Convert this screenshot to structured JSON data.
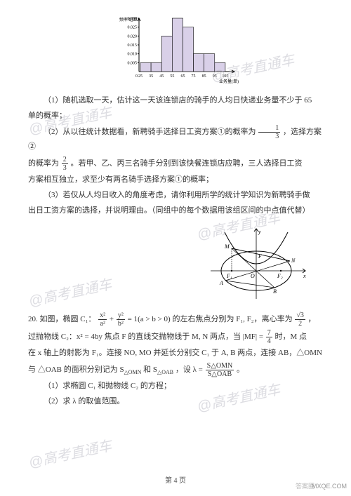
{
  "watermark": "@高考直通车",
  "histogram": {
    "type": "histogram",
    "ylabel": "频率/组距",
    "xlabel": "业务量(单)",
    "xticks": [
      "0",
      "25",
      "35",
      "45",
      "55",
      "65",
      "75",
      "85",
      "95",
      "105"
    ],
    "yticks": [
      "0.005",
      "0.010",
      "0.015",
      "0.020",
      "0.025",
      "0.030"
    ],
    "values": [
      0.005,
      0.005,
      0.02,
      0.03,
      0.025,
      0.01,
      0.01,
      0.005
    ],
    "bar_color": "#d9d0e8",
    "bar_border": "#000000",
    "axis_color": "#000000",
    "font_size": 6
  },
  "p1_a": "（1）随机选取一天，估计这一天该连锁店的骑手的人均日快递业务量不少于 65",
  "p1_b": "单的概率；",
  "p2_a": "（2）从以往统计数据看，新聘骑手选择日工资方案①的概率为",
  "p2_b": "，选择方案②",
  "p2_c": "的概率为",
  "p2_d": "。若甲、乙、丙三名骑手分别到该快餐连锁店应聘，三人选择日工资",
  "p2_e": "方案相互独立，求至少有两名骑手选择方案①的概率；",
  "p3_a": "（3）若仅从人均日收入的角度考虑，请你利用所学的统计学知识为新聘骑手做",
  "p3_b": "出日工资方案的选择，并说明理由。（同组中的每个数据用该组区间的中点值代替）",
  "frac1": {
    "num": "1",
    "den": "3"
  },
  "frac2": {
    "num": "2",
    "den": "3"
  },
  "ellipse": {
    "type": "diagram",
    "axis_color": "#000000",
    "ellipse_stroke": "#000000",
    "parabola_stroke": "#000000",
    "fill": "none",
    "labels": [
      "y",
      "x",
      "O",
      "F₁",
      "F₂",
      "M",
      "N",
      "A",
      "B"
    ]
  },
  "q20_a": "20. 如图，椭圆 C₁：",
  "q20_eq1_a": "x²",
  "q20_eq1_b": "a²",
  "q20_eq1_c": "y²",
  "q20_eq1_d": "b²",
  "q20_b": " = 1(a > b > 0) 的左右焦点分别为 F₁, F₂，离心率为",
  "q20_ecc_num": "√3",
  "q20_ecc_den": "2",
  "q20_c": "，",
  "q20_d": "过抛物线 C₂：x² = 4by 焦点 F 的直线交抛物线于 M, N 两点，当 |MF| =",
  "q20_mf_num": "7",
  "q20_mf_den": "4",
  "q20_e": " 时，M 点",
  "q20_f": "在 x 轴上的射影为 F₁。连接 NO, MO 并延长分别交 C₁ 于 A, B 两点，连接 AB，△OMN",
  "q20_g": "与 △OAB 的面积分别记为 S",
  "q20_g2": " 和 S",
  "q20_g3": "，设 λ =",
  "q20_lam_num": "S△OMN",
  "q20_lam_den": "S△OAB",
  "q20_h": "。",
  "q20_s1": "（1）求椭圆 C₁ 和抛物线 C₂ 的方程；",
  "q20_s2": "（2）求 λ 的取值范围。",
  "sub_omn": "△OMN",
  "sub_oab": "△OAB",
  "footer": "第 4 页",
  "corner_r": "MXQE.COM",
  "corner_l": "答案圈"
}
